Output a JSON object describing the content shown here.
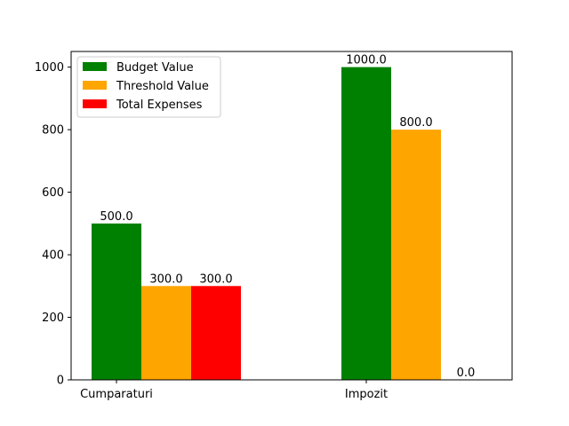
{
  "chart_data": {
    "type": "bar",
    "title": "",
    "xlabel": "",
    "ylabel": "",
    "categories": [
      "Cumparaturi",
      "Impozit"
    ],
    "series": [
      {
        "name": "Budget Value",
        "color": "#008000",
        "values": [
          500.0,
          1000.0
        ],
        "labels": [
          "500.0",
          "1000.0"
        ]
      },
      {
        "name": "Threshold Value",
        "color": "#ffa500",
        "values": [
          300.0,
          800.0
        ],
        "labels": [
          "300.0",
          "800.0"
        ]
      },
      {
        "name": "Total Expenses",
        "color": "#ff0000",
        "values": [
          300.0,
          0.0
        ],
        "labels": [
          "300.0",
          "0.0"
        ]
      }
    ],
    "ylim": [
      0,
      1050
    ],
    "yticks": [
      0,
      200,
      400,
      600,
      800,
      1000
    ],
    "grid": false,
    "legend_position": "top-left"
  }
}
